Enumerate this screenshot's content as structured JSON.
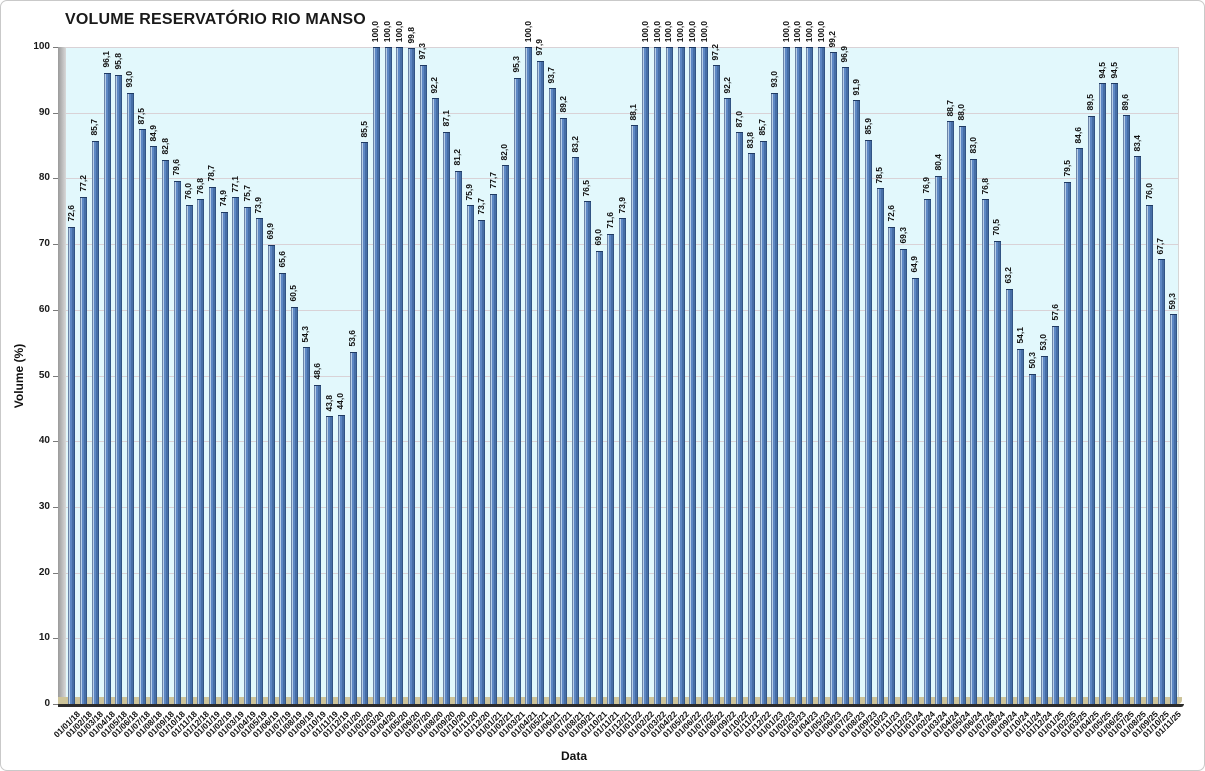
{
  "chart_data": {
    "type": "bar",
    "title": "VOLUME RESERVATÓRIO RIO MANSO",
    "xlabel": "Data",
    "ylabel": "Volume (%)",
    "ylim": [
      0,
      100
    ],
    "y_ticks": [
      0,
      10,
      20,
      30,
      40,
      50,
      60,
      70,
      80,
      90,
      100
    ],
    "grid": true,
    "legend": false,
    "decimal_separator": ",",
    "categories": [
      "01/01/18",
      "01/02/18",
      "01/03/18",
      "01/04/18",
      "01/05/18",
      "01/06/18",
      "01/07/18",
      "01/08/18",
      "01/09/18",
      "01/10/18",
      "01/11/18",
      "01/12/18",
      "01/01/19",
      "01/02/19",
      "01/03/19",
      "01/04/19",
      "01/05/19",
      "01/06/19",
      "01/07/19",
      "01/08/19",
      "01/09/19",
      "01/10/19",
      "01/11/19",
      "01/12/19",
      "01/01/20",
      "01/02/20",
      "01/03/20",
      "01/04/20",
      "01/05/20",
      "01/06/20",
      "01/07/20",
      "01/08/20",
      "01/09/20",
      "01/10/20",
      "01/11/20",
      "01/12/20",
      "01/01/21",
      "01/02/21",
      "01/03/21",
      "01/04/21",
      "01/05/21",
      "01/06/21",
      "01/07/21",
      "01/08/21",
      "01/09/21",
      "01/10/21",
      "01/11/21",
      "01/12/21",
      "01/01/22",
      "01/02/22",
      "01/03/22",
      "01/04/22",
      "01/05/22",
      "01/06/22",
      "01/07/22",
      "01/08/22",
      "01/09/22",
      "01/10/22",
      "01/11/22",
      "01/12/22",
      "01/01/23",
      "01/02/23",
      "01/03/23",
      "01/04/23",
      "01/05/23",
      "01/06/23",
      "01/07/23",
      "01/08/23",
      "01/09/23",
      "01/10/23",
      "01/11/23",
      "01/12/23",
      "01/01/24",
      "01/02/24",
      "01/03/24",
      "01/04/24",
      "01/05/24",
      "01/06/24",
      "01/07/24",
      "01/08/24",
      "01/09/24",
      "01/10/24",
      "01/11/24",
      "01/12/24",
      "01/01/25",
      "01/02/25",
      "01/03/25",
      "01/04/25",
      "01/05/25",
      "01/06/25",
      "01/07/25",
      "01/08/25",
      "01/09/25",
      "01/10/25",
      "01/11/25"
    ],
    "values": [
      72.6,
      77.2,
      85.7,
      96.1,
      95.8,
      93.0,
      87.5,
      84.9,
      82.8,
      79.6,
      76.0,
      76.8,
      78.7,
      74.9,
      77.1,
      75.7,
      73.9,
      69.9,
      65.6,
      60.5,
      54.3,
      48.6,
      43.8,
      44.0,
      53.6,
      85.5,
      100.0,
      100.0,
      100.0,
      99.8,
      97.3,
      92.2,
      87.1,
      81.2,
      75.9,
      73.7,
      77.7,
      82.0,
      95.3,
      100.0,
      97.9,
      93.7,
      89.2,
      83.2,
      76.5,
      69.0,
      71.6,
      73.9,
      88.1,
      100.0,
      100.0,
      100.0,
      100.0,
      100.0,
      100.0,
      97.2,
      92.2,
      87.0,
      83.8,
      85.7,
      93.0,
      100.0,
      100.0,
      100.0,
      100.0,
      99.2,
      96.9,
      91.9,
      85.9,
      78.5,
      72.6,
      69.3,
      64.9,
      76.9,
      80.4,
      88.7,
      88.0,
      83.0,
      76.8,
      70.5,
      63.2,
      54.1,
      50.3,
      53.0,
      57.6,
      79.5,
      84.6,
      89.5,
      94.5,
      94.5,
      89.6,
      83.4,
      76.0,
      67.7,
      59.3
    ],
    "colors": {
      "plot_bg": "#e2f8fc",
      "gridline": "#d9d2d6",
      "bar_main": "#5d87c3",
      "bar_light": "#b9cfe8",
      "bar_dark": "#1f3a63",
      "floor": "#cdc49a"
    }
  }
}
